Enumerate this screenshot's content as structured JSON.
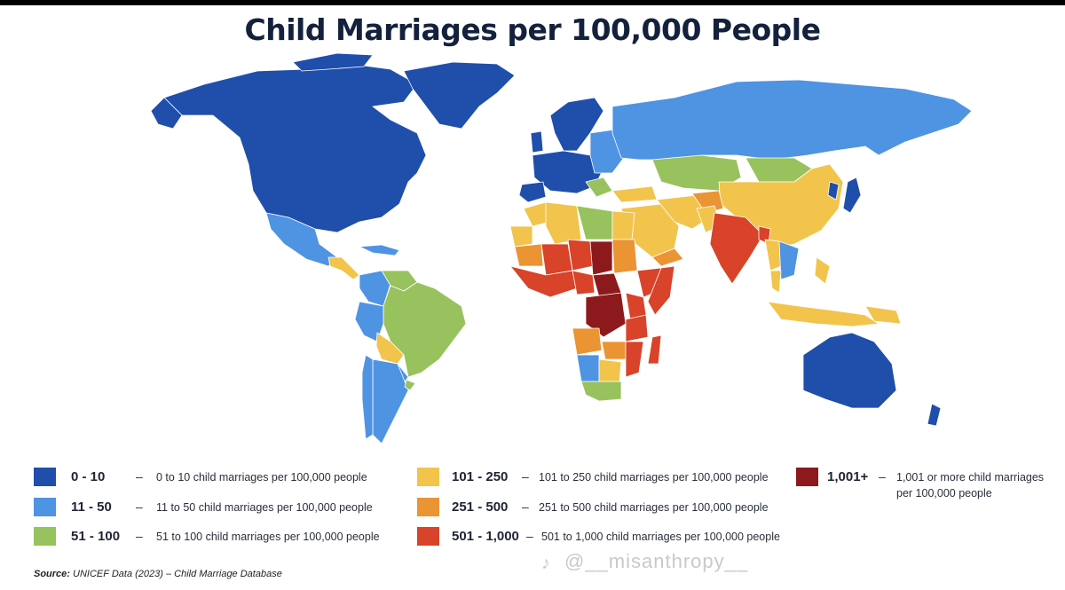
{
  "title": "Child Marriages per 100,000 People",
  "colors": {
    "c0": "#1f4eab",
    "c1": "#4f93e3",
    "c2": "#98c25d",
    "c3": "#f2c44c",
    "c4": "#ea9434",
    "c5": "#d8432a",
    "c6": "#8c1a1c"
  },
  "legend": [
    {
      "range": "0 - 10",
      "dash": "–",
      "desc": "0 to 10 child marriages per 100,000 people",
      "color": "#1f4eab"
    },
    {
      "range": "11 - 50",
      "dash": "–",
      "desc": "11 to 50 child marriages per 100,000 people",
      "color": "#4f93e3"
    },
    {
      "range": "51 - 100",
      "dash": "–",
      "desc": "51 to 100 child marriages per 100,000 people",
      "color": "#98c25d"
    },
    {
      "range": "101 - 250",
      "dash": "–",
      "desc": "101 to 250 child marriages per 100,000 people",
      "color": "#f2c44c"
    },
    {
      "range": "251 - 500",
      "dash": "–",
      "desc": "251 to 500 child marriages per 100,000 people",
      "color": "#ea9434"
    },
    {
      "range": "501 - 1,000",
      "dash": "–",
      "desc": "501 to 1,000 child marriages per 100,000 people",
      "color": "#d8432a"
    },
    {
      "range": "1,001+",
      "dash": "–",
      "desc": "1,001 or more child marriages per 100,000 people",
      "color": "#8c1a1c"
    }
  ],
  "source": {
    "label": "Source:",
    "text": "UNICEF Data (2023) – Child Marriage Database"
  },
  "watermark": "@__misanthropy__"
}
